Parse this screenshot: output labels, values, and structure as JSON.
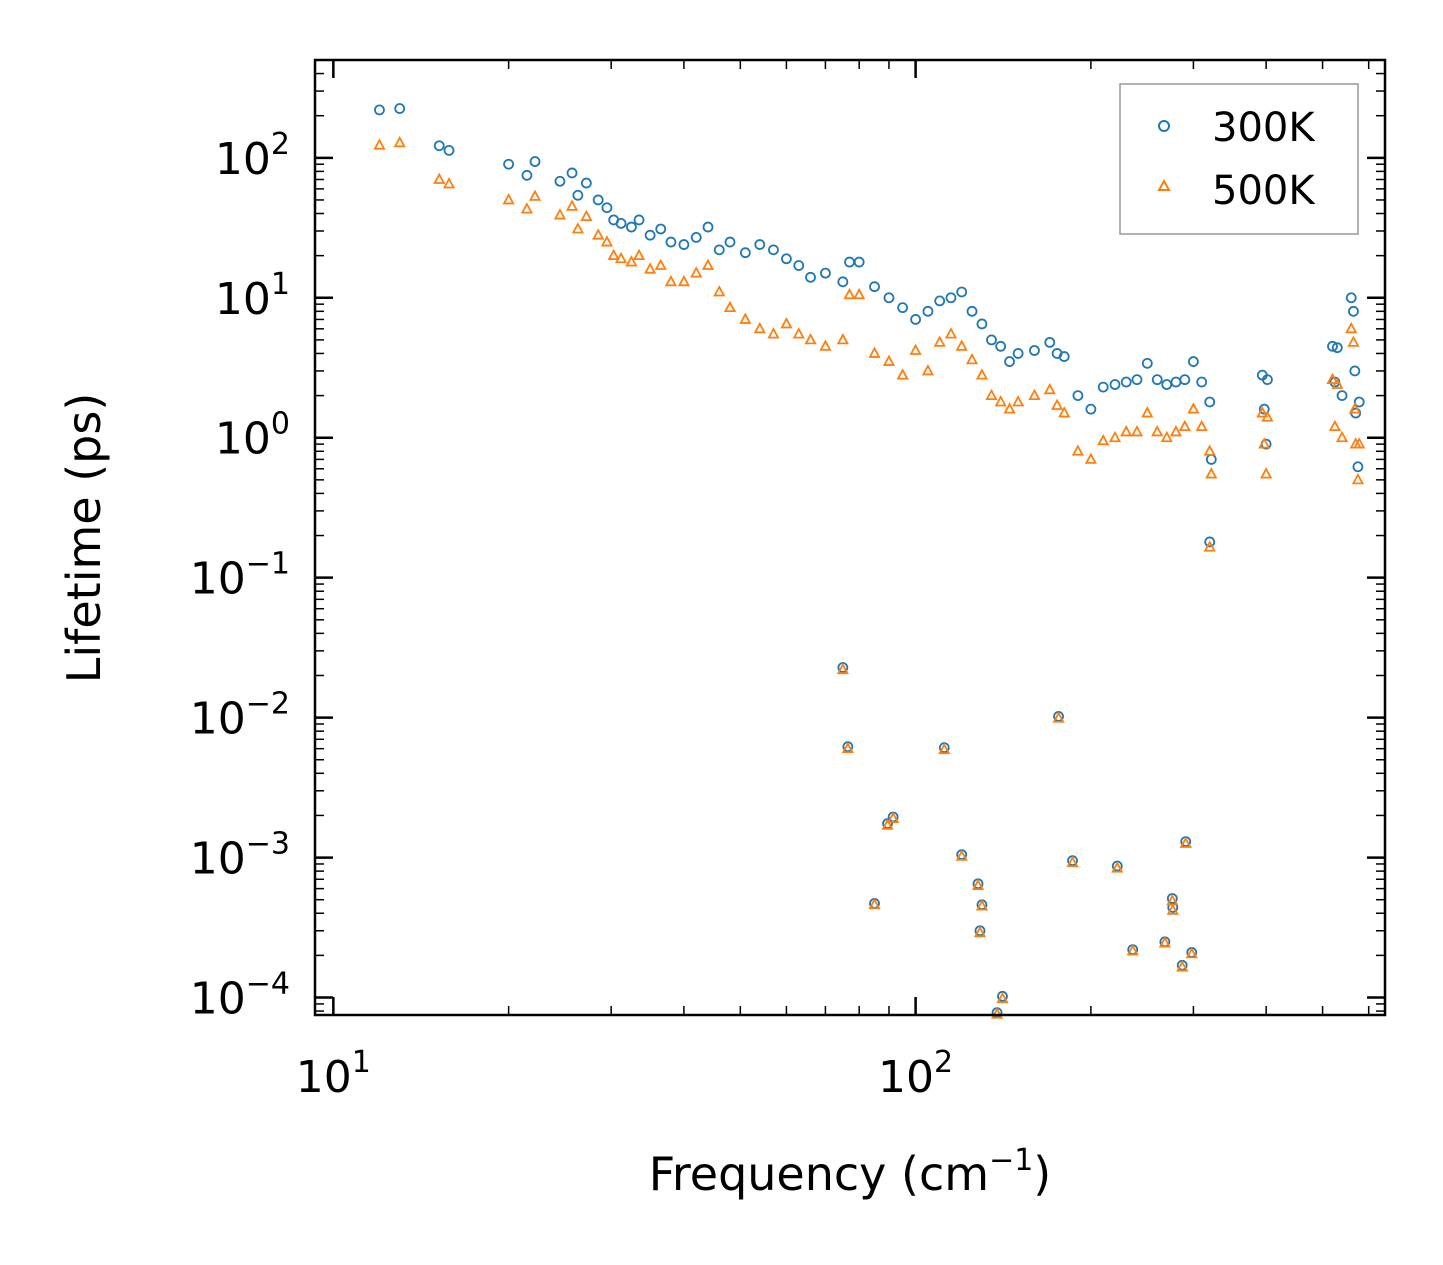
{
  "chart_data": {
    "type": "scatter",
    "title": "",
    "xlabel": "Frequency (cm",
    "xlabel_sup": "−1",
    "xlabel_tail": ")",
    "ylabel": "Lifetime (ps)",
    "xscale": "log",
    "yscale": "log",
    "xlim": [
      9.3,
      640
    ],
    "ylim": [
      7.5e-05,
      500
    ],
    "x_tick_labels": [
      {
        "value": 10,
        "base": "10",
        "exp": "1"
      },
      {
        "value": 100,
        "base": "10",
        "exp": "2"
      }
    ],
    "y_tick_labels": [
      {
        "value": 100,
        "base": "10",
        "exp": "2"
      },
      {
        "value": 10,
        "base": "10",
        "exp": "1"
      },
      {
        "value": 1,
        "base": "10",
        "exp": "0"
      },
      {
        "value": 0.1,
        "base": "10",
        "exp": "−1"
      },
      {
        "value": 0.01,
        "base": "10",
        "exp": "−2"
      },
      {
        "value": 0.001,
        "base": "10",
        "exp": "−3"
      },
      {
        "value": 0.0001,
        "base": "10",
        "exp": "−4"
      }
    ],
    "legend_position": "top-right",
    "series": [
      {
        "name": "300K",
        "color": "#1f77b4",
        "marker": "circle",
        "points": [
          [
            12.0,
            220
          ],
          [
            13.0,
            225
          ],
          [
            15.2,
            122
          ],
          [
            15.8,
            113
          ],
          [
            20.0,
            90
          ],
          [
            21.5,
            75
          ],
          [
            22.2,
            94
          ],
          [
            24.5,
            68
          ],
          [
            25.7,
            78
          ],
          [
            26.3,
            54
          ],
          [
            27.2,
            66
          ],
          [
            28.5,
            50
          ],
          [
            29.5,
            44
          ],
          [
            30.3,
            36
          ],
          [
            31.2,
            34
          ],
          [
            32.5,
            32
          ],
          [
            33.5,
            36
          ],
          [
            35.0,
            28
          ],
          [
            36.5,
            31
          ],
          [
            38.0,
            25
          ],
          [
            40.0,
            24
          ],
          [
            42.0,
            27
          ],
          [
            44.0,
            32
          ],
          [
            46.0,
            22
          ],
          [
            48.0,
            25
          ],
          [
            51.0,
            21
          ],
          [
            54.0,
            24
          ],
          [
            57.0,
            22
          ],
          [
            60.0,
            19
          ],
          [
            63.0,
            17
          ],
          [
            66.0,
            14
          ],
          [
            70.0,
            15
          ],
          [
            75.0,
            13
          ],
          [
            77.0,
            18
          ],
          [
            80.0,
            18
          ],
          [
            85.0,
            12
          ],
          [
            90.0,
            10
          ],
          [
            95.0,
            8.5
          ],
          [
            100.0,
            7.0
          ],
          [
            105.0,
            8.0
          ],
          [
            110.0,
            9.5
          ],
          [
            115.0,
            10.0
          ],
          [
            120.0,
            11.0
          ],
          [
            125.0,
            8.0
          ],
          [
            130.0,
            6.5
          ],
          [
            135.0,
            5.0
          ],
          [
            140.0,
            4.5
          ],
          [
            145.0,
            3.5
          ],
          [
            150.0,
            4.0
          ],
          [
            160.0,
            4.2
          ],
          [
            170.0,
            4.8
          ],
          [
            175.0,
            4.0
          ],
          [
            180.0,
            3.8
          ],
          [
            190.0,
            2.0
          ],
          [
            200.0,
            1.6
          ],
          [
            210.0,
            2.3
          ],
          [
            220.0,
            2.4
          ],
          [
            230.0,
            2.5
          ],
          [
            240.0,
            2.6
          ],
          [
            250.0,
            3.4
          ],
          [
            260.0,
            2.6
          ],
          [
            270.0,
            2.4
          ],
          [
            280.0,
            2.5
          ],
          [
            290.0,
            2.6
          ],
          [
            300.0,
            3.5
          ],
          [
            310.0,
            2.5
          ],
          [
            320.0,
            1.8
          ],
          [
            322.0,
            0.7
          ],
          [
            394.0,
            2.8
          ],
          [
            397.0,
            1.6
          ],
          [
            400.0,
            0.9
          ],
          [
            402.0,
            2.6
          ],
          [
            520.0,
            4.5
          ],
          [
            525.0,
            2.5
          ],
          [
            530.0,
            4.4
          ],
          [
            540.0,
            2.0
          ],
          [
            560.0,
            10.0
          ],
          [
            565.0,
            8.0
          ],
          [
            568.0,
            3.0
          ],
          [
            570.0,
            1.5
          ],
          [
            575.0,
            0.62
          ],
          [
            578.0,
            1.8
          ],
          [
            320.0,
            0.18
          ],
          [
            75.0,
            0.0228
          ],
          [
            76.5,
            0.0062
          ],
          [
            89.5,
            0.00175
          ],
          [
            91.5,
            0.00195
          ],
          [
            85.0,
            0.00047
          ],
          [
            112.0,
            0.0061
          ],
          [
            120.0,
            0.00105
          ],
          [
            128.0,
            0.00065
          ],
          [
            130.0,
            0.00046
          ],
          [
            129.0,
            0.0003
          ],
          [
            138.0,
            7.8e-05
          ],
          [
            141.0,
            0.000102
          ],
          [
            176.0,
            0.0102
          ],
          [
            186.0,
            0.00095
          ],
          [
            222.0,
            0.00087
          ],
          [
            236.0,
            0.00022
          ],
          [
            268.0,
            0.00025
          ],
          [
            276.0,
            0.00051
          ],
          [
            276.5,
            0.00044
          ],
          [
            287.0,
            0.00017
          ],
          [
            291.0,
            0.0013
          ],
          [
            298.0,
            0.00021
          ]
        ]
      },
      {
        "name": "500K",
        "color": "#ff7f0e",
        "marker": "triangle",
        "points": [
          [
            12.0,
            123
          ],
          [
            13.0,
            128
          ],
          [
            15.2,
            70
          ],
          [
            15.8,
            65
          ],
          [
            20.0,
            50
          ],
          [
            21.5,
            43
          ],
          [
            22.2,
            53
          ],
          [
            24.5,
            39
          ],
          [
            25.7,
            45
          ],
          [
            26.3,
            31
          ],
          [
            27.2,
            38
          ],
          [
            28.5,
            28
          ],
          [
            29.5,
            25
          ],
          [
            30.3,
            20
          ],
          [
            31.2,
            19
          ],
          [
            32.5,
            18
          ],
          [
            33.5,
            20
          ],
          [
            35.0,
            16
          ],
          [
            36.5,
            17
          ],
          [
            38.0,
            13
          ],
          [
            40.0,
            13
          ],
          [
            42.0,
            15
          ],
          [
            44.0,
            17
          ],
          [
            46.0,
            11
          ],
          [
            48.0,
            8.5
          ],
          [
            51.0,
            7.0
          ],
          [
            54.0,
            6.0
          ],
          [
            57.0,
            5.5
          ],
          [
            60.0,
            6.5
          ],
          [
            63.0,
            5.5
          ],
          [
            66.0,
            5.0
          ],
          [
            70.0,
            4.5
          ],
          [
            75.0,
            5.0
          ],
          [
            77.0,
            10.5
          ],
          [
            80.0,
            10.5
          ],
          [
            85.0,
            4.0
          ],
          [
            90.0,
            3.5
          ],
          [
            95.0,
            2.8
          ],
          [
            100.0,
            4.2
          ],
          [
            105.0,
            3.0
          ],
          [
            110.0,
            4.8
          ],
          [
            115.0,
            5.5
          ],
          [
            120.0,
            4.5
          ],
          [
            125.0,
            3.6
          ],
          [
            130.0,
            2.8
          ],
          [
            135.0,
            2.0
          ],
          [
            140.0,
            1.8
          ],
          [
            145.0,
            1.6
          ],
          [
            150.0,
            1.8
          ],
          [
            160.0,
            2.0
          ],
          [
            170.0,
            2.2
          ],
          [
            175.0,
            1.7
          ],
          [
            180.0,
            1.5
          ],
          [
            190.0,
            0.8
          ],
          [
            200.0,
            0.7
          ],
          [
            210.0,
            0.95
          ],
          [
            220.0,
            1.0
          ],
          [
            230.0,
            1.1
          ],
          [
            240.0,
            1.1
          ],
          [
            250.0,
            1.5
          ],
          [
            260.0,
            1.1
          ],
          [
            270.0,
            1.0
          ],
          [
            280.0,
            1.1
          ],
          [
            290.0,
            1.2
          ],
          [
            300.0,
            1.6
          ],
          [
            310.0,
            1.2
          ],
          [
            320.0,
            0.8
          ],
          [
            322.0,
            0.55
          ],
          [
            394.0,
            1.5
          ],
          [
            397.0,
            0.9
          ],
          [
            400.0,
            0.55
          ],
          [
            402.0,
            1.4
          ],
          [
            520.0,
            2.6
          ],
          [
            525.0,
            1.2
          ],
          [
            530.0,
            2.4
          ],
          [
            540.0,
            1.0
          ],
          [
            560.0,
            6.0
          ],
          [
            565.0,
            4.8
          ],
          [
            568.0,
            1.6
          ],
          [
            570.0,
            0.9
          ],
          [
            575.0,
            0.5
          ],
          [
            578.0,
            0.9
          ],
          [
            320.0,
            0.165
          ],
          [
            75.0,
            0.022
          ],
          [
            76.5,
            0.006
          ],
          [
            89.5,
            0.0017
          ],
          [
            91.5,
            0.0019
          ],
          [
            85.0,
            0.00046
          ],
          [
            112.0,
            0.0059
          ],
          [
            120.0,
            0.00102
          ],
          [
            128.0,
            0.00063
          ],
          [
            130.0,
            0.00045
          ],
          [
            129.0,
            0.00029
          ],
          [
            138.0,
            7.6e-05
          ],
          [
            141.0,
            9.8e-05
          ],
          [
            176.0,
            0.0099
          ],
          [
            186.0,
            0.00092
          ],
          [
            222.0,
            0.00084
          ],
          [
            236.0,
            0.000215
          ],
          [
            268.0,
            0.000245
          ],
          [
            276.0,
            0.00049
          ],
          [
            276.5,
            0.00042
          ],
          [
            287.0,
            0.000165
          ],
          [
            291.0,
            0.00126
          ],
          [
            298.0,
            0.000205
          ]
        ]
      }
    ]
  }
}
